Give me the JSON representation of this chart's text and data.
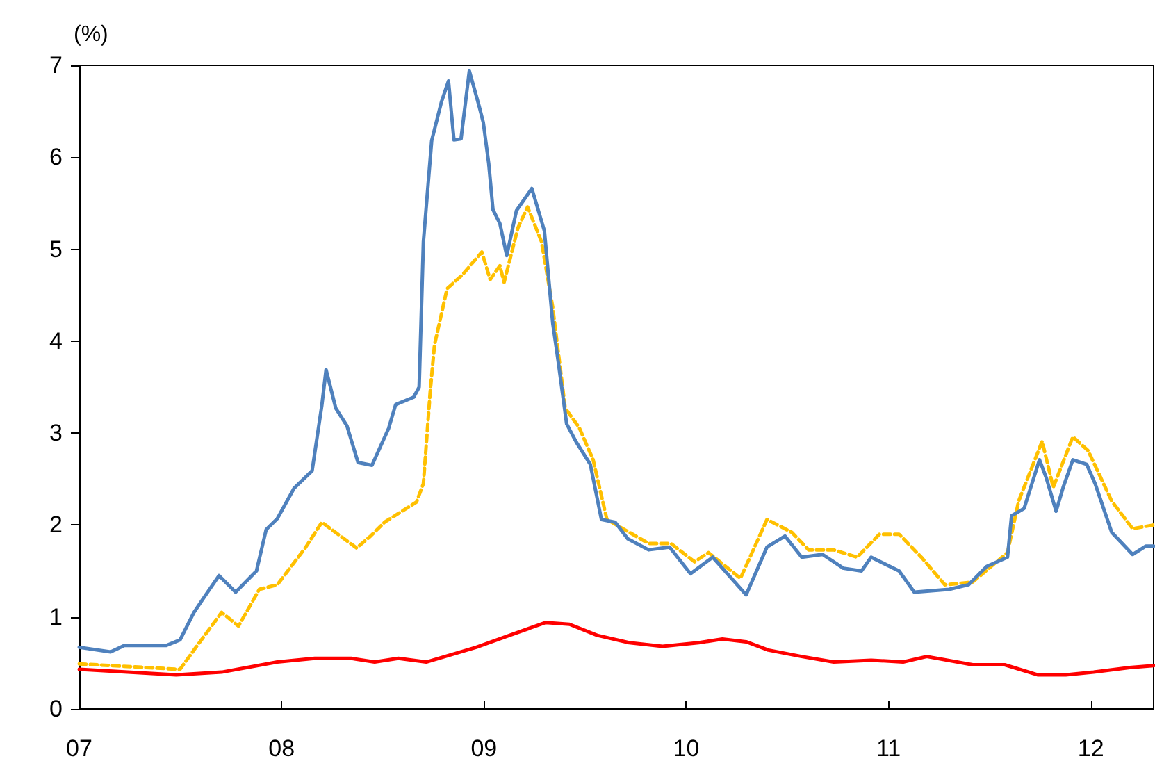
{
  "chart_data": {
    "type": "line",
    "ylabel": "(%)",
    "xlim": [
      2007,
      2012.31
    ],
    "xticks": [
      {
        "value": 2007,
        "label": "07"
      },
      {
        "value": 2008,
        "label": "08"
      },
      {
        "value": 2009,
        "label": "09"
      },
      {
        "value": 2010,
        "label": "10"
      },
      {
        "value": 2011,
        "label": "11"
      },
      {
        "value": 2012,
        "label": "12"
      }
    ],
    "ylim": [
      0,
      7
    ],
    "yticks": [
      0,
      1,
      2,
      3,
      4,
      5,
      6,
      7
    ],
    "grid": false,
    "marker": "none",
    "series": [
      {
        "color": "#4f81bd",
        "line_style": "solid",
        "x": [
          2007.0,
          2007.155,
          2007.223,
          2007.43,
          2007.498,
          2007.567,
          2007.622,
          2007.691,
          2007.773,
          2007.876,
          2007.924,
          2007.979,
          2008.062,
          2008.151,
          2008.199,
          2008.22,
          2008.268,
          2008.323,
          2008.378,
          2008.447,
          2008.529,
          2008.564,
          2008.653,
          2008.68,
          2008.701,
          2008.742,
          2008.79,
          2008.825,
          2008.852,
          2008.887,
          2008.928,
          2008.976,
          2008.997,
          2009.024,
          2009.045,
          2009.079,
          2009.113,
          2009.161,
          2009.237,
          2009.299,
          2009.34,
          2009.368,
          2009.409,
          2009.457,
          2009.526,
          2009.581,
          2009.649,
          2009.711,
          2009.814,
          2009.918,
          2010.021,
          2010.131,
          2010.296,
          2010.399,
          2010.488,
          2010.571,
          2010.674,
          2010.777,
          2010.866,
          2010.914,
          2011.052,
          2011.127,
          2011.299,
          2011.395,
          2011.485,
          2011.588,
          2011.608,
          2011.67,
          2011.746,
          2011.78,
          2011.828,
          2011.863,
          2011.911,
          2011.979,
          2012.021,
          2012.103,
          2012.206,
          2012.271,
          2012.31
        ],
        "values": [
          0.67,
          0.62,
          0.69,
          0.69,
          0.75,
          1.05,
          1.23,
          1.45,
          1.27,
          1.5,
          1.95,
          2.07,
          2.4,
          2.59,
          3.3,
          3.69,
          3.27,
          3.08,
          2.68,
          2.65,
          3.05,
          3.31,
          3.39,
          3.5,
          5.08,
          6.18,
          6.6,
          6.83,
          6.19,
          6.2,
          6.94,
          6.56,
          6.38,
          5.93,
          5.43,
          5.28,
          4.93,
          5.42,
          5.66,
          5.2,
          4.2,
          3.77,
          3.1,
          2.9,
          2.66,
          2.06,
          2.03,
          1.85,
          1.73,
          1.76,
          1.47,
          1.65,
          1.24,
          1.76,
          1.88,
          1.65,
          1.68,
          1.53,
          1.5,
          1.65,
          1.5,
          1.27,
          1.3,
          1.35,
          1.55,
          1.65,
          2.1,
          2.18,
          2.71,
          2.51,
          2.15,
          2.41,
          2.71,
          2.66,
          2.45,
          1.92,
          1.68,
          1.77,
          1.77
        ]
      },
      {
        "color": "#ffc000",
        "line_style": "dashed",
        "x": [
          2007.0,
          2007.498,
          2007.567,
          2007.704,
          2007.787,
          2007.89,
          2007.979,
          2008.117,
          2008.199,
          2008.371,
          2008.44,
          2008.509,
          2008.667,
          2008.701,
          2008.735,
          2008.756,
          2008.818,
          2008.893,
          2008.99,
          2009.031,
          2009.079,
          2009.1,
          2009.168,
          2009.216,
          2009.285,
          2009.34,
          2009.402,
          2009.471,
          2009.54,
          2009.608,
          2009.814,
          2009.924,
          2010.041,
          2010.11,
          2010.268,
          2010.399,
          2010.522,
          2010.605,
          2010.729,
          2010.845,
          2010.955,
          2011.052,
          2011.162,
          2011.278,
          2011.416,
          2011.588,
          2011.643,
          2011.759,
          2011.814,
          2011.911,
          2011.986,
          2012.103,
          2012.206,
          2012.31
        ],
        "values": [
          0.49,
          0.43,
          0.64,
          1.05,
          0.9,
          1.3,
          1.35,
          1.75,
          2.03,
          1.75,
          1.88,
          2.03,
          2.25,
          2.45,
          3.46,
          3.96,
          4.57,
          4.72,
          4.97,
          4.67,
          4.82,
          4.64,
          5.23,
          5.46,
          5.08,
          4.37,
          3.27,
          3.06,
          2.71,
          2.06,
          1.8,
          1.8,
          1.6,
          1.7,
          1.42,
          2.06,
          1.92,
          1.73,
          1.73,
          1.65,
          1.9,
          1.9,
          1.65,
          1.35,
          1.38,
          1.7,
          2.26,
          2.91,
          2.41,
          2.96,
          2.81,
          2.26,
          1.96,
          2.0
        ]
      },
      {
        "color": "#ff0000",
        "line_style": "solid",
        "x": [
          2007.0,
          2007.478,
          2007.704,
          2007.979,
          2008.164,
          2008.344,
          2008.46,
          2008.577,
          2008.715,
          2008.962,
          2009.127,
          2009.306,
          2009.423,
          2009.56,
          2009.718,
          2009.883,
          2010.062,
          2010.179,
          2010.296,
          2010.406,
          2010.571,
          2010.729,
          2010.914,
          2011.072,
          2011.189,
          2011.416,
          2011.574,
          2011.739,
          2011.876,
          2012.014,
          2012.192,
          2012.31
        ],
        "values": [
          0.43,
          0.37,
          0.4,
          0.51,
          0.55,
          0.55,
          0.51,
          0.55,
          0.51,
          0.67,
          0.8,
          0.94,
          0.92,
          0.8,
          0.72,
          0.68,
          0.72,
          0.76,
          0.73,
          0.64,
          0.57,
          0.51,
          0.53,
          0.51,
          0.57,
          0.48,
          0.48,
          0.37,
          0.37,
          0.4,
          0.45,
          0.47
        ]
      }
    ]
  }
}
